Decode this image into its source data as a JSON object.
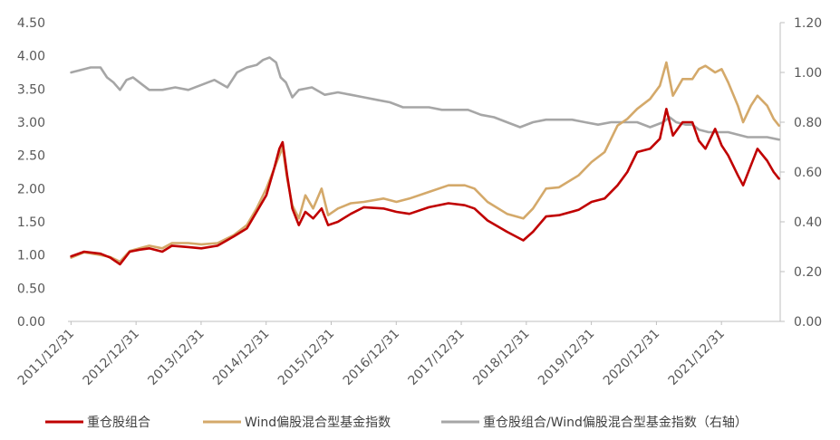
{
  "chart_data": {
    "type": "line",
    "title": "",
    "x_categories": [
      "2011/12/31",
      "2012/12/31",
      "2013/12/31",
      "2014/12/31",
      "2015/12/31",
      "2016/12/31",
      "2017/12/31",
      "2018/12/31",
      "2019/12/31",
      "2020/12/31",
      "2021/12/31"
    ],
    "x_range": [
      2011.95,
      2022.9
    ],
    "left_axis": {
      "range": [
        0,
        4.5
      ],
      "ticks": [
        "0.00",
        "0.50",
        "1.00",
        "1.50",
        "2.00",
        "2.50",
        "3.00",
        "3.50",
        "4.00",
        "4.50"
      ]
    },
    "right_axis": {
      "range": [
        0,
        1.2
      ],
      "ticks": [
        "0.00",
        "0.20",
        "0.40",
        "0.60",
        "0.80",
        "1.00",
        "1.20"
      ]
    },
    "legend_position": "bottom",
    "series": [
      {
        "name": "重仓股组合",
        "axis": "left",
        "color": "#C00000",
        "points": [
          [
            2012.0,
            0.98
          ],
          [
            2012.2,
            1.05
          ],
          [
            2012.45,
            1.02
          ],
          [
            2012.6,
            0.96
          ],
          [
            2012.75,
            0.86
          ],
          [
            2012.9,
            1.05
          ],
          [
            2013.05,
            1.08
          ],
          [
            2013.2,
            1.1
          ],
          [
            2013.4,
            1.05
          ],
          [
            2013.55,
            1.14
          ],
          [
            2013.8,
            1.12
          ],
          [
            2014.0,
            1.1
          ],
          [
            2014.25,
            1.14
          ],
          [
            2014.5,
            1.28
          ],
          [
            2014.7,
            1.4
          ],
          [
            2014.85,
            1.65
          ],
          [
            2015.0,
            1.9
          ],
          [
            2015.12,
            2.3
          ],
          [
            2015.2,
            2.6
          ],
          [
            2015.25,
            2.7
          ],
          [
            2015.32,
            2.2
          ],
          [
            2015.4,
            1.7
          ],
          [
            2015.5,
            1.45
          ],
          [
            2015.6,
            1.65
          ],
          [
            2015.72,
            1.55
          ],
          [
            2015.85,
            1.7
          ],
          [
            2015.95,
            1.45
          ],
          [
            2016.1,
            1.5
          ],
          [
            2016.3,
            1.62
          ],
          [
            2016.5,
            1.72
          ],
          [
            2016.8,
            1.7
          ],
          [
            2017.0,
            1.65
          ],
          [
            2017.2,
            1.62
          ],
          [
            2017.5,
            1.72
          ],
          [
            2017.8,
            1.78
          ],
          [
            2018.05,
            1.75
          ],
          [
            2018.2,
            1.7
          ],
          [
            2018.4,
            1.52
          ],
          [
            2018.7,
            1.35
          ],
          [
            2018.95,
            1.22
          ],
          [
            2019.1,
            1.35
          ],
          [
            2019.3,
            1.58
          ],
          [
            2019.5,
            1.6
          ],
          [
            2019.8,
            1.68
          ],
          [
            2020.0,
            1.8
          ],
          [
            2020.2,
            1.85
          ],
          [
            2020.4,
            2.05
          ],
          [
            2020.55,
            2.25
          ],
          [
            2020.7,
            2.55
          ],
          [
            2020.9,
            2.6
          ],
          [
            2021.05,
            2.75
          ],
          [
            2021.15,
            3.2
          ],
          [
            2021.25,
            2.8
          ],
          [
            2021.4,
            3.0
          ],
          [
            2021.55,
            3.0
          ],
          [
            2021.65,
            2.72
          ],
          [
            2021.75,
            2.6
          ],
          [
            2021.9,
            2.9
          ],
          [
            2022.0,
            2.65
          ],
          [
            2022.1,
            2.5
          ],
          [
            2022.25,
            2.2
          ],
          [
            2022.33,
            2.05
          ],
          [
            2022.45,
            2.35
          ],
          [
            2022.55,
            2.6
          ],
          [
            2022.7,
            2.42
          ],
          [
            2022.8,
            2.25
          ],
          [
            2022.88,
            2.15
          ]
        ]
      },
      {
        "name": "Wind偏股混合型基金指数",
        "axis": "left",
        "color": "#D4A96A",
        "points": [
          [
            2012.0,
            0.96
          ],
          [
            2012.2,
            1.04
          ],
          [
            2012.45,
            1.0
          ],
          [
            2012.6,
            0.97
          ],
          [
            2012.75,
            0.9
          ],
          [
            2012.9,
            1.06
          ],
          [
            2013.05,
            1.1
          ],
          [
            2013.2,
            1.14
          ],
          [
            2013.4,
            1.1
          ],
          [
            2013.55,
            1.18
          ],
          [
            2013.8,
            1.18
          ],
          [
            2014.0,
            1.16
          ],
          [
            2014.25,
            1.18
          ],
          [
            2014.5,
            1.3
          ],
          [
            2014.7,
            1.45
          ],
          [
            2014.85,
            1.7
          ],
          [
            2015.0,
            2.0
          ],
          [
            2015.12,
            2.3
          ],
          [
            2015.2,
            2.5
          ],
          [
            2015.25,
            2.62
          ],
          [
            2015.32,
            2.15
          ],
          [
            2015.4,
            1.75
          ],
          [
            2015.5,
            1.55
          ],
          [
            2015.6,
            1.9
          ],
          [
            2015.72,
            1.7
          ],
          [
            2015.85,
            2.0
          ],
          [
            2015.95,
            1.6
          ],
          [
            2016.1,
            1.7
          ],
          [
            2016.3,
            1.78
          ],
          [
            2016.5,
            1.8
          ],
          [
            2016.8,
            1.85
          ],
          [
            2017.0,
            1.8
          ],
          [
            2017.2,
            1.85
          ],
          [
            2017.5,
            1.95
          ],
          [
            2017.8,
            2.05
          ],
          [
            2018.05,
            2.05
          ],
          [
            2018.2,
            2.0
          ],
          [
            2018.4,
            1.8
          ],
          [
            2018.7,
            1.62
          ],
          [
            2018.95,
            1.55
          ],
          [
            2019.1,
            1.7
          ],
          [
            2019.3,
            2.0
          ],
          [
            2019.5,
            2.02
          ],
          [
            2019.8,
            2.2
          ],
          [
            2020.0,
            2.4
          ],
          [
            2020.2,
            2.55
          ],
          [
            2020.4,
            2.95
          ],
          [
            2020.55,
            3.05
          ],
          [
            2020.7,
            3.2
          ],
          [
            2020.9,
            3.35
          ],
          [
            2021.05,
            3.55
          ],
          [
            2021.15,
            3.9
          ],
          [
            2021.25,
            3.4
          ],
          [
            2021.4,
            3.65
          ],
          [
            2021.55,
            3.65
          ],
          [
            2021.65,
            3.8
          ],
          [
            2021.75,
            3.85
          ],
          [
            2021.9,
            3.75
          ],
          [
            2022.0,
            3.8
          ],
          [
            2022.1,
            3.6
          ],
          [
            2022.25,
            3.25
          ],
          [
            2022.33,
            3.0
          ],
          [
            2022.45,
            3.25
          ],
          [
            2022.55,
            3.4
          ],
          [
            2022.7,
            3.25
          ],
          [
            2022.8,
            3.05
          ],
          [
            2022.88,
            2.95
          ]
        ]
      },
      {
        "name": "重仓股组合/Wind偏股混合型基金指数（右轴）",
        "axis": "right",
        "color": "#A6A6A6",
        "points": [
          [
            2012.0,
            1.0
          ],
          [
            2012.15,
            1.01
          ],
          [
            2012.3,
            1.02
          ],
          [
            2012.45,
            1.02
          ],
          [
            2012.55,
            0.98
          ],
          [
            2012.65,
            0.96
          ],
          [
            2012.75,
            0.93
          ],
          [
            2012.85,
            0.97
          ],
          [
            2012.95,
            0.98
          ],
          [
            2013.1,
            0.95
          ],
          [
            2013.2,
            0.93
          ],
          [
            2013.4,
            0.93
          ],
          [
            2013.6,
            0.94
          ],
          [
            2013.8,
            0.93
          ],
          [
            2014.0,
            0.95
          ],
          [
            2014.2,
            0.97
          ],
          [
            2014.4,
            0.94
          ],
          [
            2014.55,
            1.0
          ],
          [
            2014.7,
            1.02
          ],
          [
            2014.85,
            1.03
          ],
          [
            2014.95,
            1.05
          ],
          [
            2015.05,
            1.06
          ],
          [
            2015.15,
            1.04
          ],
          [
            2015.22,
            0.98
          ],
          [
            2015.3,
            0.96
          ],
          [
            2015.4,
            0.9
          ],
          [
            2015.5,
            0.93
          ],
          [
            2015.7,
            0.94
          ],
          [
            2015.9,
            0.91
          ],
          [
            2016.1,
            0.92
          ],
          [
            2016.3,
            0.91
          ],
          [
            2016.5,
            0.9
          ],
          [
            2016.7,
            0.89
          ],
          [
            2016.9,
            0.88
          ],
          [
            2017.1,
            0.86
          ],
          [
            2017.3,
            0.86
          ],
          [
            2017.5,
            0.86
          ],
          [
            2017.7,
            0.85
          ],
          [
            2017.9,
            0.85
          ],
          [
            2018.1,
            0.85
          ],
          [
            2018.3,
            0.83
          ],
          [
            2018.5,
            0.82
          ],
          [
            2018.7,
            0.8
          ],
          [
            2018.9,
            0.78
          ],
          [
            2019.1,
            0.8
          ],
          [
            2019.3,
            0.81
          ],
          [
            2019.5,
            0.81
          ],
          [
            2019.7,
            0.81
          ],
          [
            2019.9,
            0.8
          ],
          [
            2020.1,
            0.79
          ],
          [
            2020.3,
            0.8
          ],
          [
            2020.5,
            0.8
          ],
          [
            2020.7,
            0.8
          ],
          [
            2020.9,
            0.78
          ],
          [
            2021.1,
            0.8
          ],
          [
            2021.2,
            0.82
          ],
          [
            2021.3,
            0.8
          ],
          [
            2021.45,
            0.79
          ],
          [
            2021.55,
            0.79
          ],
          [
            2021.65,
            0.77
          ],
          [
            2021.8,
            0.76
          ],
          [
            2021.95,
            0.76
          ],
          [
            2022.1,
            0.76
          ],
          [
            2022.25,
            0.75
          ],
          [
            2022.4,
            0.74
          ],
          [
            2022.55,
            0.74
          ],
          [
            2022.7,
            0.74
          ],
          [
            2022.88,
            0.73
          ]
        ]
      }
    ]
  }
}
